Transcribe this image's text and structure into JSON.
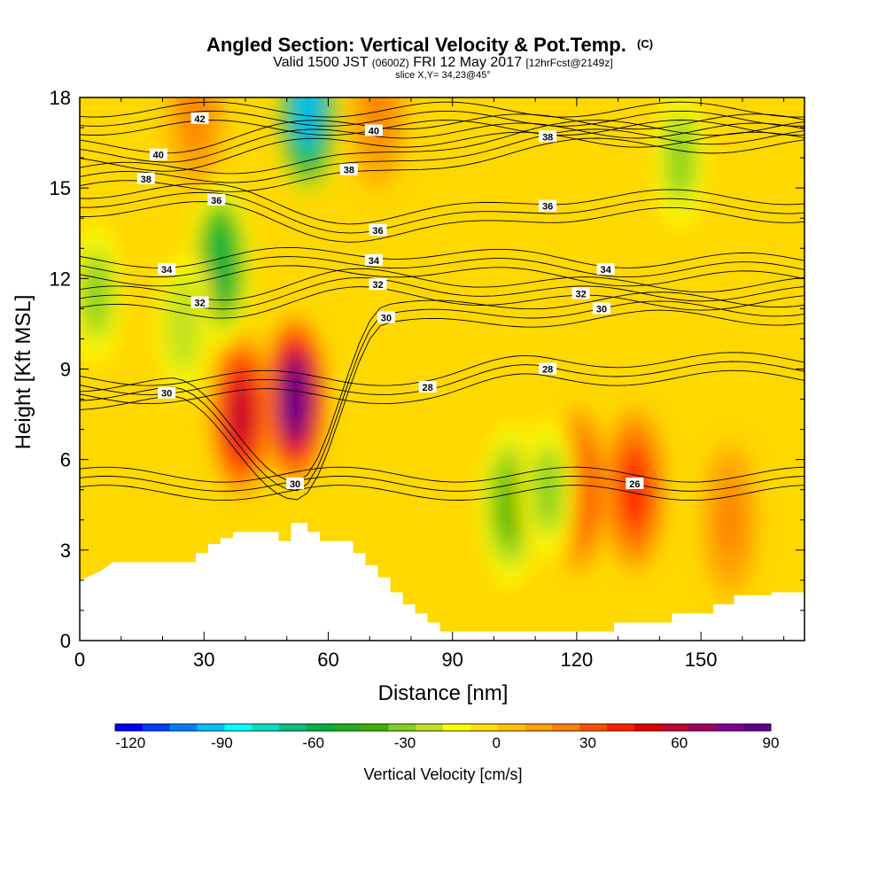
{
  "header": {
    "title_main": "Angled Section: Vertical Velocity & Pot.Temp.",
    "title_unit": "(C)",
    "valid_1": "Valid 1500 JST",
    "valid_utc": "(0600Z)",
    "valid_2": "FRI 12 May 2017",
    "valid_fcst": "[12hrFcst@2149z]",
    "slice": "slice X,Y= 34,23@45°"
  },
  "chart_data": {
    "type": "heatmap",
    "title": "Angled Section: Vertical Velocity & Pot.Temp. (C)",
    "xlabel": "Distance [nm]",
    "ylabel": "Height [Kft MSL]",
    "xlim": [
      0,
      175
    ],
    "ylim": [
      0,
      18
    ],
    "xticks": [
      0,
      30,
      60,
      90,
      120,
      150
    ],
    "yticks": [
      0,
      3,
      6,
      9,
      12,
      15,
      18
    ],
    "colorbar": {
      "label": "Vertical Velocity [cm/s]",
      "ticks": [
        -120,
        -90,
        -60,
        -30,
        0,
        30,
        60,
        90
      ],
      "bounds": [
        -125,
        90
      ],
      "colors": [
        "#0000ff",
        "#0040ff",
        "#0080ff",
        "#00c0ff",
        "#00ffff",
        "#00e0c0",
        "#00c080",
        "#00b040",
        "#20b020",
        "#40b000",
        "#80d020",
        "#c0e020",
        "#ffff00",
        "#ffe000",
        "#ffc000",
        "#ffa000",
        "#ff8000",
        "#ff5000",
        "#ff2000",
        "#e00000",
        "#c00030",
        "#a00060",
        "#800090",
        "#600090"
      ]
    },
    "terrain": [
      [
        0,
        2
      ],
      [
        5,
        2.3
      ],
      [
        8,
        2.6
      ],
      [
        28,
        2.6
      ],
      [
        28,
        2.9
      ],
      [
        31,
        2.9
      ],
      [
        31,
        3.2
      ],
      [
        34,
        3.2
      ],
      [
        34,
        3.4
      ],
      [
        37,
        3.4
      ],
      [
        37,
        3.6
      ],
      [
        48,
        3.6
      ],
      [
        48,
        3.3
      ],
      [
        51,
        3.3
      ],
      [
        51,
        3.9
      ],
      [
        55,
        3.9
      ],
      [
        55,
        3.6
      ],
      [
        58,
        3.6
      ],
      [
        58,
        3.3
      ],
      [
        66,
        3.3
      ],
      [
        66,
        2.9
      ],
      [
        69,
        2.9
      ],
      [
        69,
        2.5
      ],
      [
        72,
        2.5
      ],
      [
        72,
        2.1
      ],
      [
        75,
        2.1
      ],
      [
        75,
        1.6
      ],
      [
        78,
        1.6
      ],
      [
        78,
        1.2
      ],
      [
        81,
        1.2
      ],
      [
        81,
        0.9
      ],
      [
        84,
        0.9
      ],
      [
        84,
        0.6
      ],
      [
        87,
        0.6
      ],
      [
        87,
        0.3
      ],
      [
        129,
        0.3
      ],
      [
        129,
        0.6
      ],
      [
        143,
        0.6
      ],
      [
        143,
        0.9
      ],
      [
        153,
        0.9
      ],
      [
        153,
        1.2
      ],
      [
        158,
        1.2
      ],
      [
        158,
        1.5
      ],
      [
        167,
        1.5
      ],
      [
        167,
        1.6
      ],
      [
        175,
        1.6
      ]
    ],
    "velocity_features": [
      {
        "x": 52,
        "y": 8.0,
        "value": 90
      },
      {
        "x": 39,
        "y": 7.5,
        "value": 60
      },
      {
        "x": 134,
        "y": 5.0,
        "value": 45
      },
      {
        "x": 120,
        "y": 5.0,
        "value": 45
      },
      {
        "x": 157,
        "y": 4.0,
        "value": 20
      },
      {
        "x": 72,
        "y": 17.5,
        "value": 20
      },
      {
        "x": 28,
        "y": 17.5,
        "value": 20
      },
      {
        "x": 55,
        "y": 17.5,
        "value": -90
      },
      {
        "x": 34,
        "y": 12.5,
        "value": -60
      },
      {
        "x": 104,
        "y": 4.5,
        "value": -40
      },
      {
        "x": 113,
        "y": 5.0,
        "value": -30
      },
      {
        "x": 145,
        "y": 16,
        "value": -30
      },
      {
        "x": 4,
        "y": 11.5,
        "value": -30
      },
      {
        "x": 25,
        "y": 10.5,
        "value": -25
      }
    ],
    "isentropes": [
      {
        "theta": 26,
        "label_at": [
          [
            134,
            5.2
          ]
        ]
      },
      {
        "theta": 28,
        "label_at": [
          [
            84,
            8.4
          ],
          [
            113,
            9.0
          ]
        ]
      },
      {
        "theta": 30,
        "label_at": [
          [
            21,
            8.2
          ],
          [
            52,
            5.2
          ],
          [
            74,
            10.7
          ],
          [
            126,
            11.0
          ]
        ]
      },
      {
        "theta": 32,
        "label_at": [
          [
            29,
            11.2
          ],
          [
            72,
            11.8
          ],
          [
            121,
            11.5
          ]
        ]
      },
      {
        "theta": 34,
        "label_at": [
          [
            21,
            12.3
          ],
          [
            71,
            12.6
          ],
          [
            127,
            12.3
          ]
        ]
      },
      {
        "theta": 36,
        "label_at": [
          [
            33,
            14.6
          ],
          [
            72,
            13.6
          ],
          [
            113,
            14.4
          ]
        ]
      },
      {
        "theta": 38,
        "label_at": [
          [
            16,
            15.3
          ],
          [
            65,
            15.6
          ],
          [
            113,
            16.7
          ]
        ]
      },
      {
        "theta": 40,
        "label_at": [
          [
            19,
            16.1
          ],
          [
            71,
            16.9
          ]
        ]
      },
      {
        "theta": 42,
        "label_at": [
          [
            29,
            17.3
          ]
        ]
      }
    ]
  }
}
